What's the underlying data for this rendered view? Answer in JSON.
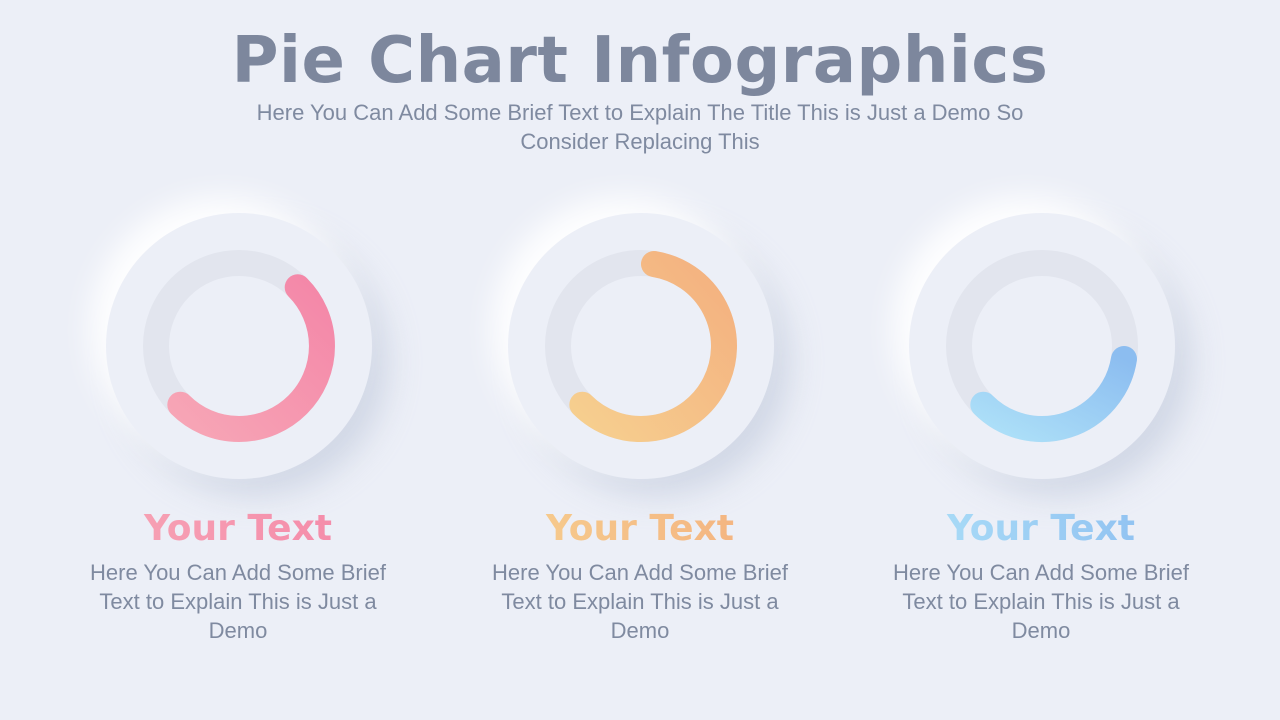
{
  "header": {
    "title": "Pie Chart Infographics",
    "subtitle": "Here You Can Add Some Brief Text to Explain The Title This is Just a Demo So Consider Replacing This"
  },
  "items": [
    {
      "title": "Your Text",
      "description": "Here You Can Add Some Brief Text to Explain This is Just a Demo",
      "fraction": 0.5,
      "colors": {
        "start": "#f7a6b6",
        "end": "#f487a8"
      }
    },
    {
      "title": "Your Text",
      "description": "Here You Can Add Some Brief Text to Explain This is Just a Demo",
      "fraction": 0.6,
      "colors": {
        "start": "#f6cf8f",
        "end": "#f4b07f"
      }
    },
    {
      "title": "Your Text",
      "description": "Here You Can Add Some Brief Text to Explain This is Just a Demo",
      "fraction": 0.35,
      "colors": {
        "start": "#ade0f8",
        "end": "#8cbdf0"
      }
    }
  ],
  "colors": {
    "background": "#eceff7",
    "track": "#e2e5ee",
    "text": "#7f8aa0",
    "title": "#7d879d"
  }
}
